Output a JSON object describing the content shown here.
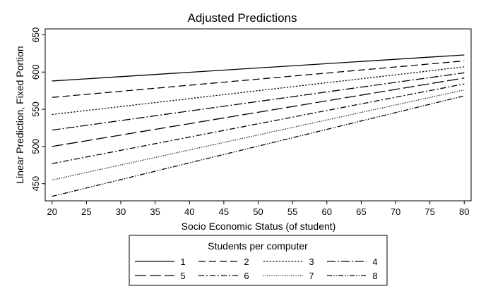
{
  "chart_data": {
    "type": "line",
    "title": "Adjusted Predictions",
    "xlabel": "Socio Economic Status (of student)",
    "ylabel": "Linear Prediction, Fixed Portion",
    "xlim": [
      19,
      81
    ],
    "ylim": [
      427,
      658
    ],
    "xticks": [
      20,
      25,
      30,
      35,
      40,
      45,
      50,
      55,
      60,
      65,
      70,
      75,
      80
    ],
    "yticks": [
      450,
      500,
      550,
      600,
      650
    ],
    "grid": false,
    "legend": {
      "title": "Students per computer",
      "placement": "bottom",
      "columns": 4
    },
    "series": [
      {
        "name": "1",
        "x": [
          20,
          80
        ],
        "values": [
          588,
          623
        ],
        "dash": ""
      },
      {
        "name": "2",
        "x": [
          20,
          80
        ],
        "values": [
          566,
          615
        ],
        "dash": "10,5"
      },
      {
        "name": "3",
        "x": [
          20,
          80
        ],
        "values": [
          543,
          607
        ],
        "dash": "2.2,2.2"
      },
      {
        "name": "4",
        "x": [
          20,
          80
        ],
        "values": [
          522,
          599
        ],
        "dash": "12,3,2,3"
      },
      {
        "name": "5",
        "x": [
          20,
          80
        ],
        "values": [
          500,
          592
        ],
        "dash": "16,5"
      },
      {
        "name": "6",
        "x": [
          20,
          80
        ],
        "values": [
          477,
          584
        ],
        "dash": "8,3,2,3"
      },
      {
        "name": "7",
        "x": [
          20,
          80
        ],
        "values": [
          455,
          576
        ],
        "dash": "1,1.6"
      },
      {
        "name": "8",
        "x": [
          20,
          80
        ],
        "values": [
          433,
          568
        ],
        "dash": "7,2,1.5,2,1.5,2"
      }
    ]
  }
}
